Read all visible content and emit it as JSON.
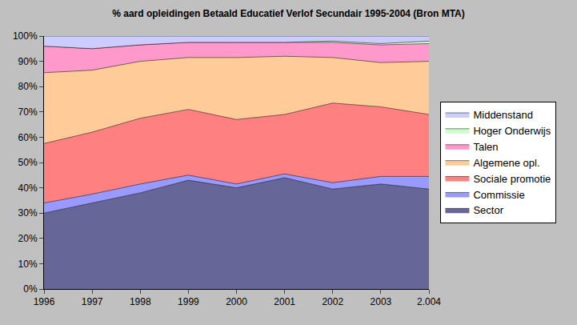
{
  "chart_data": {
    "type": "area",
    "stacked": true,
    "title": "% aard opleidingen Betaald Educatief Verlof Secundair 1995-2004 (Bron MTA)",
    "categories": [
      "1996",
      "1997",
      "1998",
      "1999",
      "2000",
      "2001",
      "2002",
      "2003",
      "2.004"
    ],
    "series": [
      {
        "name": "Sector",
        "color": "#666699",
        "values": [
          30,
          34,
          38,
          43,
          40,
          44,
          39.5,
          41.5,
          39.5
        ]
      },
      {
        "name": "Commissie",
        "color": "#9999ff",
        "values": [
          4,
          3.5,
          3.5,
          2,
          1.5,
          1.5,
          2.5,
          3,
          5
        ]
      },
      {
        "name": "Sociale promotie",
        "color": "#ff8080",
        "values": [
          23.5,
          24.5,
          26,
          26,
          25.5,
          23.5,
          31.5,
          27.5,
          24.5
        ]
      },
      {
        "name": "Algemene opl.",
        "color": "#ffcc99",
        "values": [
          28,
          24.5,
          22.5,
          20.5,
          24.5,
          23,
          18,
          17.5,
          21
        ]
      },
      {
        "name": "Talen",
        "color": "#ff99cc",
        "values": [
          10.5,
          8.5,
          6.5,
          6,
          6,
          5.5,
          6,
          7,
          7
        ]
      },
      {
        "name": "Hoger Onderwijs",
        "color": "#ccffcc",
        "values": [
          0,
          0,
          0,
          0,
          0,
          0,
          0.5,
          0.5,
          1
        ]
      },
      {
        "name": "Middenstand",
        "color": "#ccccff",
        "values": [
          4,
          5,
          3.5,
          2.5,
          2.5,
          2.5,
          2,
          3,
          2
        ]
      }
    ],
    "ylim": [
      0,
      100
    ],
    "yticks": [
      {
        "value": 0,
        "label": "0%"
      },
      {
        "value": 10,
        "label": "10%"
      },
      {
        "value": 20,
        "label": "20%"
      },
      {
        "value": 30,
        "label": "30%"
      },
      {
        "value": 40,
        "label": "40%"
      },
      {
        "value": 50,
        "label": "50%"
      },
      {
        "value": 60,
        "label": "60%"
      },
      {
        "value": 70,
        "label": "70%"
      },
      {
        "value": 80,
        "label": "80%"
      },
      {
        "value": 90,
        "label": "90%"
      },
      {
        "value": 100,
        "label": "100%"
      }
    ],
    "grid": false,
    "legend": "right"
  }
}
